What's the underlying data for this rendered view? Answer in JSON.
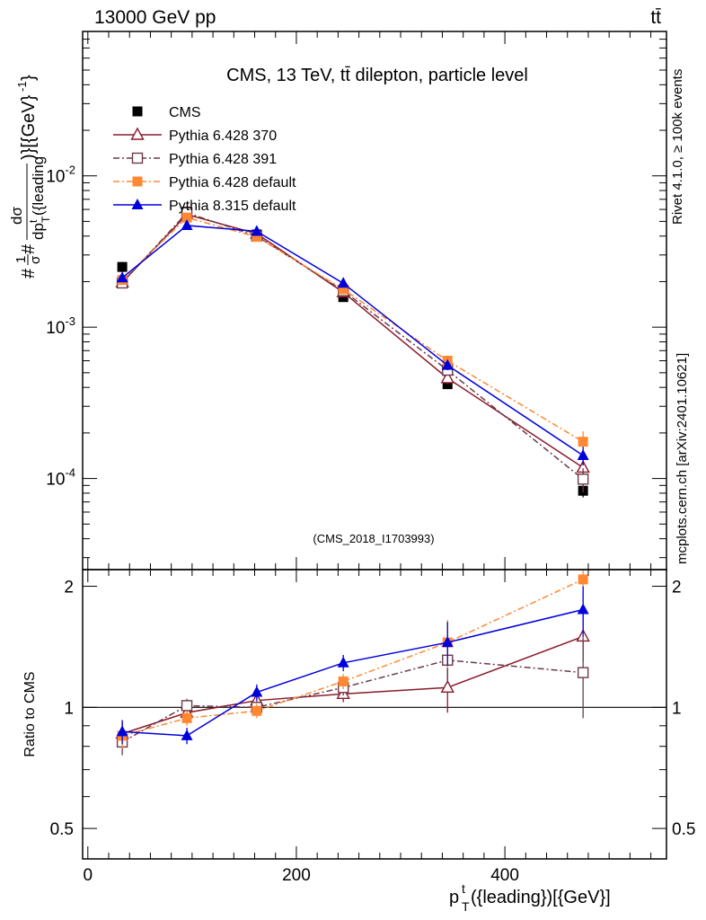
{
  "header": {
    "left": "13000 GeV pp",
    "right": "tt̄"
  },
  "side_labels": {
    "rivet": "Rivet 4.1.0, ≥ 100k events",
    "mcplots": "mcplots.cern.ch [arXiv:2401.10621]"
  },
  "colors": {
    "cms": "#000000",
    "p370": "#8b1a2b",
    "p391": "#6b3a4a",
    "p6def": "#ff8833",
    "p8def": "#0000dd"
  },
  "chart_data": [
    {
      "type": "line",
      "panel": "main",
      "title": "CMS, 13 TeV, tt̄ dilepton, particle level",
      "watermark": "(CMS_2018_I1703993)",
      "yscale": "log",
      "ylabel": "#1/σ# dσ/dp_T^t({leading})[{GeV}^-1]",
      "xlim": [
        -5,
        555
      ],
      "ylim": [
        2.5e-05,
        0.09
      ],
      "ytick_labels": [
        "10^-4",
        "10^-3",
        "10^-2"
      ],
      "ytick_values": [
        0.0001,
        0.001,
        0.01
      ],
      "x": [
        33,
        95,
        162,
        245,
        345,
        475
      ],
      "series": [
        {
          "name": "CMS",
          "key": "cms",
          "marker": "square-filled",
          "dash": "none",
          "line": false,
          "values": [
            0.0025,
            0.0058,
            0.0041,
            0.00158,
            0.00042,
            8.3e-05
          ],
          "err_lo": [
            0.0002,
            0.0003,
            0.0002,
            8e-05,
            3e-05,
            8e-06
          ],
          "err_hi": [
            0.0002,
            0.0003,
            0.0002,
            8e-05,
            3e-05,
            8e-06
          ]
        },
        {
          "name": "Pythia 6.428 370",
          "key": "p370",
          "marker": "triangle-open",
          "dash": "solid",
          "line": true,
          "values": [
            0.00198,
            0.00555,
            0.00415,
            0.0017,
            0.00046,
            0.000118
          ],
          "err_lo": [
            0.0001,
            0.0002,
            0.0002,
            8e-05,
            4e-05,
            1.5e-05
          ],
          "err_hi": [
            0.0001,
            0.0002,
            0.0002,
            8e-05,
            4e-05,
            1.5e-05
          ]
        },
        {
          "name": "Pythia 6.428 391",
          "key": "p391",
          "marker": "square-open",
          "dash": "dashdot",
          "line": true,
          "values": [
            0.00196,
            0.0057,
            0.004,
            0.00174,
            0.00052,
            9.9e-05
          ],
          "err_lo": [
            0.0001,
            0.0002,
            0.0002,
            8e-05,
            4e-05,
            1.8e-05
          ],
          "err_hi": [
            0.0001,
            0.0002,
            0.0002,
            8e-05,
            4e-05,
            1.8e-05
          ]
        },
        {
          "name": "Pythia 6.428 default",
          "key": "p6def",
          "marker": "square-filled",
          "dash": "dashdot",
          "line": true,
          "values": [
            0.00205,
            0.0053,
            0.00395,
            0.00178,
            0.0006,
            0.000175
          ],
          "err_lo": [
            0.0001,
            0.0002,
            0.0002,
            8e-05,
            5e-05,
            3e-05
          ],
          "err_hi": [
            0.0001,
            0.0002,
            0.0002,
            8e-05,
            5e-05,
            3e-05
          ]
        },
        {
          "name": "Pythia 8.315 default",
          "key": "p8def",
          "marker": "triangle-filled",
          "dash": "solid",
          "line": true,
          "values": [
            0.00212,
            0.0047,
            0.0043,
            0.00195,
            0.00056,
            0.000142
          ],
          "err_lo": [
            0.0001,
            0.0002,
            0.0002,
            8e-05,
            4e-05,
            2e-05
          ],
          "err_hi": [
            0.0001,
            0.0002,
            0.0002,
            8e-05,
            4e-05,
            2e-05
          ]
        }
      ],
      "legend": [
        "CMS",
        "Pythia 6.428 370",
        "Pythia 6.428 391",
        "Pythia 6.428 default",
        "Pythia 8.315 default"
      ]
    },
    {
      "type": "line",
      "panel": "ratio",
      "ylabel": "Ratio to CMS",
      "xlabel": "p_T^t({leading})[{GeV}]",
      "xlim": [
        -5,
        555
      ],
      "ylim": [
        0.42,
        2.2
      ],
      "ytick_labels": [
        "0.5",
        "1",
        "2"
      ],
      "ytick_values": [
        0.5,
        1,
        2
      ],
      "xtick_labels": [
        "0",
        "200",
        "400"
      ],
      "xtick_values": [
        0,
        200,
        400
      ],
      "x": [
        33,
        95,
        162,
        245,
        345,
        475
      ],
      "series": [
        {
          "name": "Pythia 6.428 370",
          "key": "p370",
          "marker": "triangle-open",
          "dash": "solid",
          "values": [
            0.86,
            0.97,
            1.04,
            1.08,
            1.12,
            1.5
          ],
          "err_lo": [
            0.06,
            0.04,
            0.04,
            0.05,
            0.15,
            0.2
          ],
          "err_hi": [
            0.06,
            0.04,
            0.04,
            0.05,
            0.15,
            0.2
          ]
        },
        {
          "name": "Pythia 6.428 391",
          "key": "p391",
          "marker": "square-open",
          "dash": "dashdot",
          "values": [
            0.82,
            1.01,
            1.0,
            1.12,
            1.31,
            1.22
          ],
          "err_lo": [
            0.06,
            0.04,
            0.04,
            0.05,
            0.15,
            0.28
          ],
          "err_hi": [
            0.06,
            0.04,
            0.04,
            0.05,
            0.15,
            0.28
          ]
        },
        {
          "name": "Pythia 6.428 default",
          "key": "p6def",
          "marker": "square-filled",
          "dash": "dashdot",
          "values": [
            0.85,
            0.94,
            0.98,
            1.16,
            1.45,
            2.08
          ],
          "err_lo": [
            0.06,
            0.04,
            0.04,
            0.05,
            0.2,
            0.3
          ],
          "err_hi": [
            0.06,
            0.04,
            0.04,
            0.05,
            0.2,
            0.3
          ]
        },
        {
          "name": "Pythia 8.315 default",
          "key": "p8def",
          "marker": "triangle-filled",
          "dash": "solid",
          "values": [
            0.87,
            0.85,
            1.09,
            1.29,
            1.45,
            1.75
          ],
          "err_lo": [
            0.06,
            0.04,
            0.05,
            0.06,
            0.18,
            0.25
          ],
          "err_hi": [
            0.06,
            0.04,
            0.05,
            0.06,
            0.18,
            0.25
          ]
        }
      ]
    }
  ]
}
